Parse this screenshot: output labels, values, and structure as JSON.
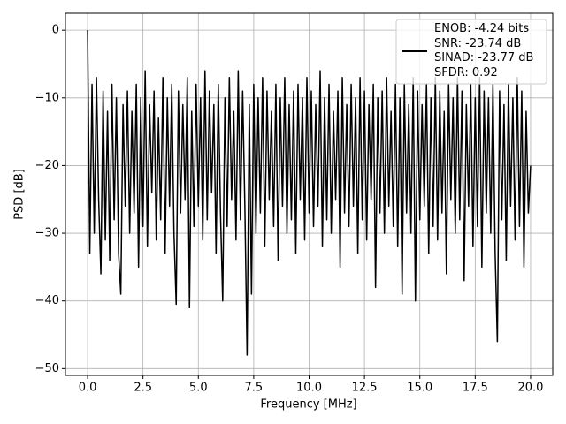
{
  "chart_data": {
    "type": "line",
    "xlabel": "Frequency [MHz]",
    "ylabel": "PSD [dB]",
    "grid": true,
    "legend": "upper right",
    "xlim": [
      -1,
      21
    ],
    "ylim": [
      -51,
      2.5
    ],
    "xticks": [
      {
        "value": 0,
        "label": "0.0"
      },
      2.5,
      {
        "value": 5,
        "label": "5.0"
      },
      7.5,
      {
        "value": 10,
        "label": "10.0"
      },
      12.5,
      {
        "value": 15,
        "label": "15.0"
      },
      17.5,
      {
        "value": 20,
        "label": "20.0"
      }
    ],
    "yticks": [
      0,
      {
        "value": -10,
        "label": "−10"
      },
      {
        "value": -20,
        "label": "−20"
      },
      {
        "value": -30,
        "label": "−30"
      },
      {
        "value": -40,
        "label": "−40"
      },
      {
        "value": -50,
        "label": "−50"
      }
    ],
    "x": [
      0,
      0.1,
      0.2,
      0.3,
      0.4,
      0.5,
      0.6,
      0.7,
      0.8,
      0.9,
      1,
      1.1,
      1.2,
      1.3,
      1.4,
      1.5,
      1.6,
      1.7,
      1.8,
      1.9,
      2,
      2.1,
      2.2,
      2.3,
      2.4,
      2.5,
      2.6,
      2.7,
      2.8,
      2.9,
      3,
      3.1,
      3.2,
      3.3,
      3.4,
      3.5,
      3.6,
      3.7,
      3.8,
      3.9,
      4,
      4.1,
      4.2,
      4.3,
      4.4,
      4.5,
      4.6,
      4.7,
      4.8,
      4.9,
      5,
      5.1,
      5.2,
      5.3,
      5.4,
      5.5,
      5.6,
      5.7,
      5.8,
      5.9,
      6,
      6.1,
      6.2,
      6.3,
      6.4,
      6.5,
      6.6,
      6.7,
      6.8,
      6.9,
      7,
      7.1,
      7.2,
      7.3,
      7.4,
      7.5,
      7.6,
      7.7,
      7.8,
      7.9,
      8,
      8.1,
      8.2,
      8.3,
      8.4,
      8.5,
      8.6,
      8.7,
      8.8,
      8.9,
      9,
      9.1,
      9.2,
      9.3,
      9.4,
      9.5,
      9.6,
      9.7,
      9.8,
      9.9,
      10,
      10.1,
      10.2,
      10.3,
      10.4,
      10.5,
      10.6,
      10.7,
      10.8,
      10.9,
      11,
      11.1,
      11.2,
      11.3,
      11.4,
      11.5,
      11.6,
      11.7,
      11.8,
      11.9,
      12,
      12.1,
      12.2,
      12.3,
      12.4,
      12.5,
      12.6,
      12.7,
      12.8,
      12.9,
      13,
      13.1,
      13.2,
      13.3,
      13.4,
      13.5,
      13.6,
      13.7,
      13.8,
      13.9,
      14,
      14.1,
      14.2,
      14.3,
      14.4,
      14.5,
      14.6,
      14.7,
      14.8,
      14.9,
      15,
      15.1,
      15.2,
      15.3,
      15.4,
      15.5,
      15.6,
      15.7,
      15.8,
      15.9,
      16,
      16.1,
      16.2,
      16.3,
      16.4,
      16.5,
      16.6,
      16.7,
      16.8,
      16.9,
      17,
      17.1,
      17.2,
      17.3,
      17.4,
      17.5,
      17.6,
      17.7,
      17.8,
      17.9,
      18,
      18.1,
      18.2,
      18.3,
      18.4,
      18.5,
      18.6,
      18.7,
      18.8,
      18.9,
      19,
      19.1,
      19.2,
      19.3,
      19.4,
      19.5,
      19.6,
      19.7,
      19.8,
      19.9,
      20
    ],
    "series": [
      {
        "name": "ENOB: -4.24 bits\nSNR: -23.74 dB\nSINAD: -23.77 dB\nSFDR: 0.92",
        "color": "#000000",
        "values": [
          0,
          -33,
          -8,
          -30,
          -7,
          -25,
          -36,
          -9,
          -31,
          -12,
          -34,
          -8,
          -28,
          -10,
          -33,
          -39,
          -11,
          -26,
          -9,
          -30,
          -12,
          -27,
          -8,
          -35,
          -10,
          -29,
          -6,
          -32,
          -11,
          -24,
          -9,
          -31,
          -13,
          -28,
          -7,
          -33,
          -10,
          -26,
          -8,
          -30,
          -40.5,
          -9,
          -27,
          -11,
          -25,
          -7,
          -41,
          -12,
          -29,
          -8,
          -26,
          -10,
          -31,
          -6,
          -28,
          -9,
          -24,
          -11,
          -33,
          -8,
          -27,
          -40,
          -10,
          -29,
          -7,
          -25,
          -12,
          -31,
          -6,
          -28,
          -9,
          -26,
          -48,
          -11,
          -39,
          -8,
          -30,
          -10,
          -27,
          -7,
          -32,
          -9,
          -25,
          -12,
          -29,
          -8,
          -34,
          -10,
          -26,
          -7,
          -30,
          -11,
          -28,
          -9,
          -33,
          -8,
          -25,
          -10,
          -31,
          -7,
          -27,
          -9,
          -29,
          -11,
          -26,
          -6,
          -32,
          -10,
          -28,
          -8,
          -30,
          -12,
          -25,
          -9,
          -35,
          -7,
          -27,
          -11,
          -29,
          -8,
          -26,
          -10,
          -33,
          -7,
          -28,
          -9,
          -31,
          -11,
          -25,
          -8,
          -38,
          -10,
          -27,
          -9,
          -30,
          -7,
          -26,
          -12,
          -29,
          -8,
          -32,
          -10,
          -39,
          -8,
          -27,
          -11,
          -30,
          -7,
          -40,
          -9,
          -28,
          -11,
          -26,
          -8,
          -33,
          -10,
          -29,
          -7,
          -31,
          -9,
          -27,
          -12,
          -36,
          -8,
          -25,
          -10,
          -30,
          -7,
          -28,
          -9,
          -37,
          -11,
          -26,
          -8,
          -32,
          -10,
          -29,
          -7,
          -35,
          -9,
          -27,
          -10,
          -30,
          -8,
          -33,
          -46,
          -9,
          -28,
          -11,
          -34,
          -8,
          -26,
          -10,
          -31,
          -7,
          -29,
          -9,
          -35,
          -12,
          -27,
          -20
        ]
      }
    ]
  }
}
